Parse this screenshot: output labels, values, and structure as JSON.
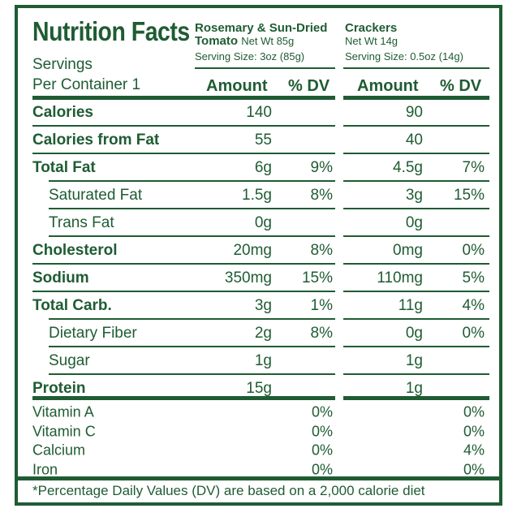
{
  "title": "Nutrition Facts",
  "servings": [
    "Servings",
    "Per Container 1"
  ],
  "product1": {
    "name_line1": "Rosemary & Sun-Dried",
    "name_line2": "Tomato",
    "net_wt": "Net Wt 85g",
    "serving_size": "Serving Size: 3oz (85g)"
  },
  "product2": {
    "name": "Crackers",
    "net_wt": "Net Wt 14g",
    "serving_size": "Serving Size: 0.5oz (14g)"
  },
  "headers": {
    "amount": "Amount",
    "dv": "% DV"
  },
  "rows": [
    {
      "label": "Calories",
      "style": "bold",
      "p1_amount": "140",
      "p1_dv": "",
      "p2_amount": "90",
      "p2_dv": ""
    },
    {
      "label": "Calories from Fat",
      "style": "bold",
      "p1_amount": "55",
      "p1_dv": "",
      "p2_amount": "40",
      "p2_dv": ""
    },
    {
      "label": "Total Fat",
      "style": "bold",
      "p1_amount": "6g",
      "p1_dv": "9%",
      "p2_amount": "4.5g",
      "p2_dv": "7%"
    },
    {
      "label": "Saturated Fat",
      "style": "indent",
      "p1_amount": "1.5g",
      "p1_dv": "8%",
      "p2_amount": "3g",
      "p2_dv": "15%"
    },
    {
      "label": "Trans Fat",
      "style": "indent",
      "p1_amount": "0g",
      "p1_dv": "",
      "p2_amount": "0g",
      "p2_dv": ""
    },
    {
      "label": "Cholesterol",
      "style": "bold",
      "p1_amount": "20mg",
      "p1_dv": "8%",
      "p2_amount": "0mg",
      "p2_dv": "0%"
    },
    {
      "label": "Sodium",
      "style": "bold",
      "p1_amount": "350mg",
      "p1_dv": "15%",
      "p2_amount": "110mg",
      "p2_dv": "5%"
    },
    {
      "label": "Total Carb.",
      "style": "bold",
      "p1_amount": "3g",
      "p1_dv": "1%",
      "p2_amount": "11g",
      "p2_dv": "4%"
    },
    {
      "label": "Dietary Fiber",
      "style": "indent",
      "p1_amount": "2g",
      "p1_dv": "8%",
      "p2_amount": "0g",
      "p2_dv": "0%"
    },
    {
      "label": "Sugar",
      "style": "indent",
      "p1_amount": "1g",
      "p1_dv": "",
      "p2_amount": "1g",
      "p2_dv": ""
    },
    {
      "label": "Protein",
      "style": "bold",
      "p1_amount": "15g",
      "p1_dv": "",
      "p2_amount": "1g",
      "p2_dv": ""
    }
  ],
  "vitamins": [
    {
      "label": "Vitamin A",
      "p1_dv": "0%",
      "p2_dv": "0%"
    },
    {
      "label": "Vitamin C",
      "p1_dv": "0%",
      "p2_dv": "0%"
    },
    {
      "label": "Calcium",
      "p1_dv": "0%",
      "p2_dv": "4%"
    },
    {
      "label": "Iron",
      "p1_dv": "0%",
      "p2_dv": "0%"
    }
  ],
  "footnote": "*Percentage Daily Values (DV) are based on a 2,000 calorie diet",
  "colors": {
    "ink": "#1f5c33",
    "background": "#ffffff"
  }
}
